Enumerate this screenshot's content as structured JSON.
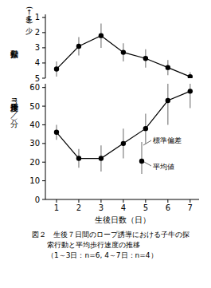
{
  "chart_data": [
    {
      "type": "line",
      "x": [
        1,
        2,
        3,
        4,
        5,
        6,
        7
      ],
      "series": [
        {
          "values": [
            4.4,
            2.9,
            2.2,
            3.3,
            3.7,
            4.3,
            4.9
          ],
          "errors": [
            0.5,
            0.6,
            0.8,
            0.6,
            0.6,
            0.5,
            0.3
          ],
          "color": "#000000",
          "marker": "circle"
        }
      ],
      "y_label": "探索行動",
      "annotations": [
        "(多←→少)"
      ],
      "xlim": [
        0.5,
        7.4
      ],
      "ylim": [
        5,
        0.8
      ],
      "yticks": [
        1,
        2,
        3,
        4,
        5
      ],
      "tick_labels": "y",
      "grid": false
    },
    {
      "type": "line",
      "x": [
        1,
        2,
        3,
        4,
        5,
        6,
        7
      ],
      "series": [
        {
          "values": [
            36,
            22,
            22,
            30,
            38,
            53,
            58
          ],
          "errors": [
            4,
            5,
            7,
            8,
            8,
            13,
            9
          ],
          "color": "#000000",
          "marker": "circle"
        }
      ],
      "x_label": "生後日数（日）",
      "y_label": "平均歩行速度（m／分）",
      "annotations": [
        "標準偏差",
        "平均値"
      ],
      "xlim": [
        0.5,
        7.4
      ],
      "xticks": [
        1,
        2,
        3,
        4,
        5,
        6,
        7
      ],
      "ylim": [
        0,
        62
      ],
      "yticks": [
        0,
        10,
        20,
        30,
        40,
        50,
        60
      ],
      "grid": false,
      "title": "図２　生後７日間のロープ誘導における子牛の探索行動と平均歩行速度の推移",
      "subtitle": "（1～3日：n=6, 4～7日：n=4）"
    }
  ]
}
